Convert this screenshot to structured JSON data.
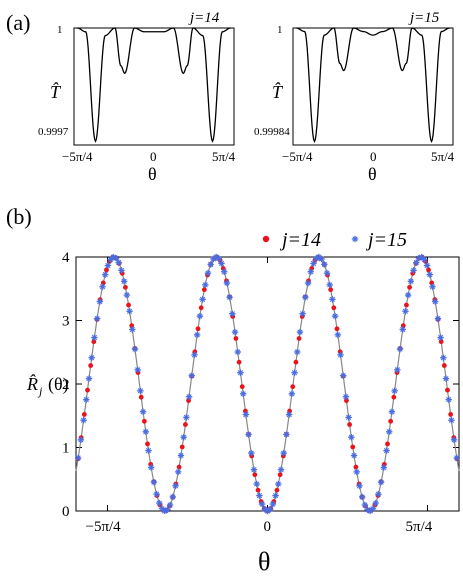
{
  "chart_data": [
    {
      "panel": "(a)",
      "type": "line",
      "label": "j=14",
      "ylabel": "T̂",
      "xlabel": "θ",
      "xticks": [
        "−5π/4",
        "0",
        "5π/4"
      ],
      "yticks": [
        "0.9997",
        "1"
      ],
      "xlim": [
        -4.1,
        4.1
      ],
      "ylim": [
        0.99969,
        1.0
      ],
      "x": [
        -3.93,
        -3.5,
        -3.0,
        -2.5,
        -2.0,
        -1.7,
        -1.5,
        -1.0,
        -0.5,
        0,
        0.5,
        1.0,
        1.5,
        1.7,
        2.0,
        2.5,
        3.0,
        3.5,
        3.93
      ],
      "y": [
        1.0,
        0.99999,
        0.9997,
        0.99998,
        1.0,
        0.9999,
        0.99988,
        1.0,
        0.99999,
        0.99999,
        0.99999,
        1.0,
        0.99988,
        0.9999,
        1.0,
        0.99998,
        0.9997,
        0.99999,
        1.0
      ]
    },
    {
      "panel": "(a)",
      "type": "line",
      "label": "j=15",
      "ylabel": "T̂",
      "xlabel": "θ",
      "xticks": [
        "−5π/4",
        "0",
        "5π/4"
      ],
      "yticks": [
        "0.99984",
        "1"
      ],
      "xlim": [
        -4.1,
        4.1
      ],
      "ylim": [
        0.999835,
        1.0
      ],
      "x": [
        -3.93,
        -3.5,
        -3.0,
        -2.5,
        -2.0,
        -1.7,
        -1.5,
        -1.0,
        -0.5,
        0,
        0.5,
        1.0,
        1.5,
        1.7,
        2.0,
        2.5,
        3.0,
        3.5,
        3.93
      ],
      "y": [
        1.0,
        0.999995,
        0.99984,
        0.99999,
        1.0,
        0.99995,
        0.99994,
        1.0,
        0.999995,
        0.99999,
        0.999995,
        1.0,
        0.99994,
        0.99995,
        1.0,
        0.99999,
        0.99984,
        0.999995,
        1.0
      ]
    },
    {
      "panel": "(b)",
      "type": "scatter",
      "xlabel": "θ",
      "ylabel": "R̂",
      "ylabel_sub": "j",
      "ylabel_arg": "(θ)",
      "xticks": [
        "−5π/4",
        "0",
        "5π/4"
      ],
      "yticks": [
        "0",
        "1",
        "2",
        "3",
        "4"
      ],
      "xlim": [
        -4.7,
        4.7
      ],
      "ylim": [
        0,
        4
      ],
      "curve": "4 sin²(5θ/4)",
      "legend_location": "top-right",
      "series": [
        {
          "name": "j=14",
          "color": "#e8141c",
          "marker": "dot"
        },
        {
          "name": "j=15",
          "color": "#4a6de0",
          "marker": "star"
        }
      ]
    }
  ]
}
